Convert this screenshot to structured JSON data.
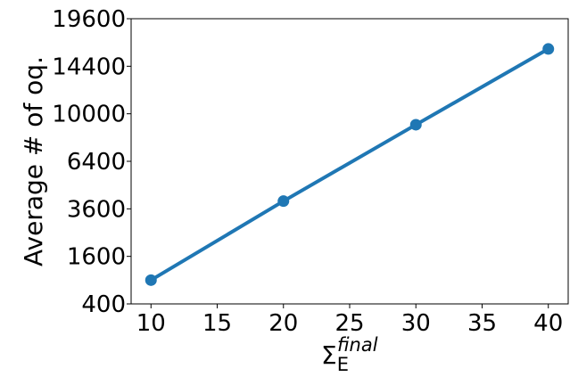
{
  "chart_data": {
    "type": "line",
    "x": [
      10,
      20,
      30,
      40
    ],
    "xticks": [
      "10",
      "15",
      "20",
      "25",
      "30",
      "35",
      "40"
    ],
    "xlim": [
      8.5,
      41.5
    ],
    "yscale": "sqrt",
    "yticks": [
      "400",
      "1600",
      "3600",
      "6400",
      "10000",
      "14400",
      "19600"
    ],
    "ylim": [
      400,
      19600
    ],
    "series": [
      {
        "values": [
          900,
          4000,
          9100,
          16200
        ],
        "color": "#1f77b4",
        "marker": "circle"
      }
    ],
    "xlabel_main": "Σ",
    "xlabel_sub": "E",
    "xlabel_sup": "final",
    "ylabel": "Average # of oq.",
    "grid": false,
    "legend": false
  }
}
